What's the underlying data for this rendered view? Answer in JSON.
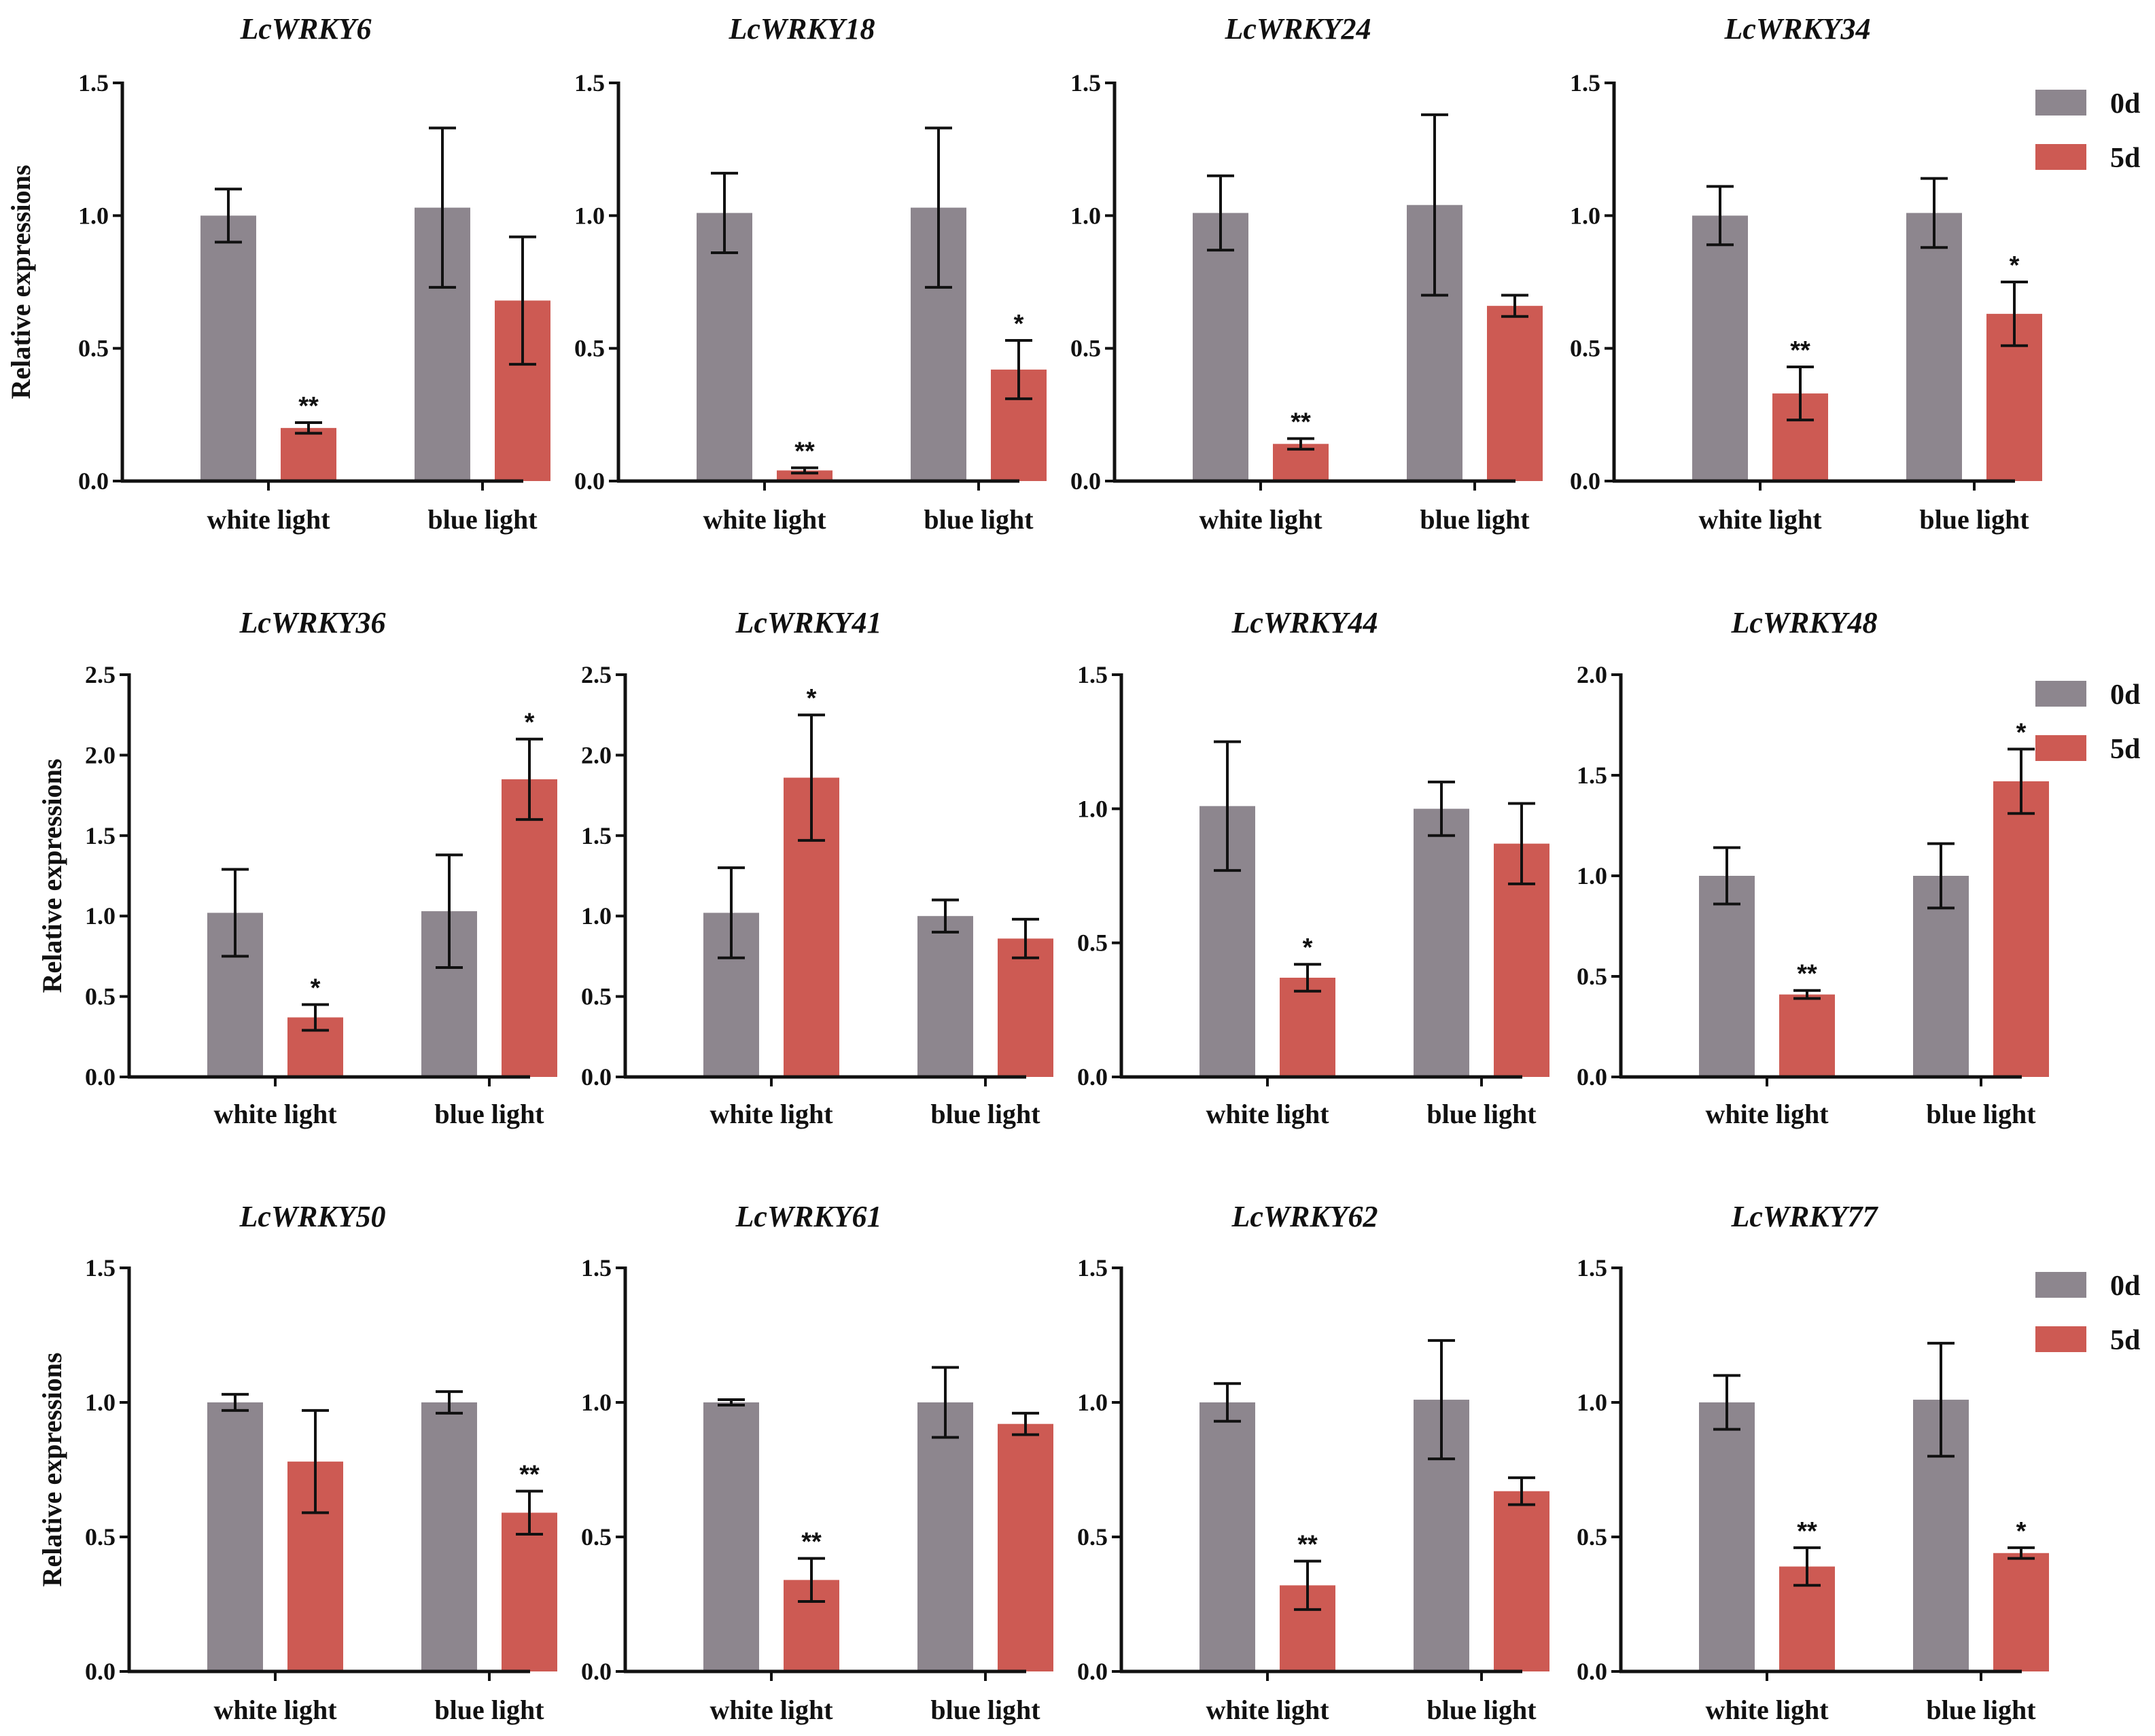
{
  "colors": {
    "day0": "#8d868e",
    "day5": "#cd5a53",
    "axis": "#111111"
  },
  "legend": {
    "labels": [
      "0d",
      "5d"
    ]
  },
  "chart_data": [
    {
      "type": "bar",
      "title": "LcWRKY6",
      "ylabel": "Relative expressions",
      "categories": [
        "white light",
        "blue light"
      ],
      "ylim": [
        0,
        1.5
      ],
      "yticks": [
        "0.0",
        "0.5",
        "1.0",
        "1.5"
      ],
      "series": [
        {
          "name": "0d",
          "values": [
            1.0,
            1.03
          ],
          "errors": [
            0.1,
            0.3
          ]
        },
        {
          "name": "5d",
          "values": [
            0.2,
            0.68
          ],
          "errors": [
            0.02,
            0.24
          ]
        }
      ],
      "significance": [
        "**",
        ""
      ]
    },
    {
      "type": "bar",
      "title": "LcWRKY18",
      "ylabel": "",
      "categories": [
        "white light",
        "blue light"
      ],
      "ylim": [
        0,
        1.5
      ],
      "yticks": [
        "0.0",
        "0.5",
        "1.0",
        "1.5"
      ],
      "series": [
        {
          "name": "0d",
          "values": [
            1.01,
            1.03
          ],
          "errors": [
            0.15,
            0.3
          ]
        },
        {
          "name": "5d",
          "values": [
            0.04,
            0.42
          ],
          "errors": [
            0.01,
            0.11
          ]
        }
      ],
      "significance": [
        "**",
        "*"
      ]
    },
    {
      "type": "bar",
      "title": "LcWRKY24",
      "ylabel": "",
      "categories": [
        "white light",
        "blue light"
      ],
      "ylim": [
        0,
        1.5
      ],
      "yticks": [
        "0.0",
        "0.5",
        "1.0",
        "1.5"
      ],
      "series": [
        {
          "name": "0d",
          "values": [
            1.01,
            1.04
          ],
          "errors": [
            0.14,
            0.34
          ]
        },
        {
          "name": "5d",
          "values": [
            0.14,
            0.66
          ],
          "errors": [
            0.02,
            0.04
          ]
        }
      ],
      "significance": [
        "**",
        ""
      ]
    },
    {
      "type": "bar",
      "title": "LcWRKY34",
      "ylabel": "",
      "categories": [
        "white light",
        "blue light"
      ],
      "ylim": [
        0,
        1.5
      ],
      "yticks": [
        "0.0",
        "0.5",
        "1.0",
        "1.5"
      ],
      "series": [
        {
          "name": "0d",
          "values": [
            1.0,
            1.01
          ],
          "errors": [
            0.11,
            0.13
          ]
        },
        {
          "name": "5d",
          "values": [
            0.33,
            0.63
          ],
          "errors": [
            0.1,
            0.12
          ]
        }
      ],
      "significance": [
        "**",
        "*"
      ]
    },
    {
      "type": "bar",
      "title": "LcWRKY36",
      "ylabel": "Relative expressions",
      "categories": [
        "white light",
        "blue light"
      ],
      "ylim": [
        0,
        2.5
      ],
      "yticks": [
        "0.0",
        "0.5",
        "1.0",
        "1.5",
        "2.0",
        "2.5"
      ],
      "series": [
        {
          "name": "0d",
          "values": [
            1.02,
            1.03
          ],
          "errors": [
            0.27,
            0.35
          ]
        },
        {
          "name": "5d",
          "values": [
            0.37,
            1.85
          ],
          "errors": [
            0.08,
            0.25
          ]
        }
      ],
      "significance": [
        "*",
        "*"
      ]
    },
    {
      "type": "bar",
      "title": "LcWRKY41",
      "ylabel": "",
      "categories": [
        "white light",
        "blue light"
      ],
      "ylim": [
        0,
        2.5
      ],
      "yticks": [
        "0.0",
        "0.5",
        "1.0",
        "1.5",
        "2.0",
        "2.5"
      ],
      "series": [
        {
          "name": "0d",
          "values": [
            1.02,
            1.0
          ],
          "errors": [
            0.28,
            0.1
          ]
        },
        {
          "name": "5d",
          "values": [
            1.86,
            0.86
          ],
          "errors": [
            0.39,
            0.12
          ]
        }
      ],
      "significance": [
        "*",
        ""
      ]
    },
    {
      "type": "bar",
      "title": "LcWRKY44",
      "ylabel": "",
      "categories": [
        "white light",
        "blue light"
      ],
      "ylim": [
        0,
        1.5
      ],
      "yticks": [
        "0.0",
        "0.5",
        "1.0",
        "1.5"
      ],
      "series": [
        {
          "name": "0d",
          "values": [
            1.01,
            1.0
          ],
          "errors": [
            0.24,
            0.1
          ]
        },
        {
          "name": "5d",
          "values": [
            0.37,
            0.87
          ],
          "errors": [
            0.05,
            0.15
          ]
        }
      ],
      "significance": [
        "*",
        ""
      ]
    },
    {
      "type": "bar",
      "title": "LcWRKY48",
      "ylabel": "",
      "categories": [
        "white light",
        "blue light"
      ],
      "ylim": [
        0,
        2.0
      ],
      "yticks": [
        "0.0",
        "0.5",
        "1.0",
        "1.5",
        "2.0"
      ],
      "series": [
        {
          "name": "0d",
          "values": [
            1.0,
            1.0
          ],
          "errors": [
            0.14,
            0.16
          ]
        },
        {
          "name": "5d",
          "values": [
            0.41,
            1.47
          ],
          "errors": [
            0.02,
            0.16
          ]
        }
      ],
      "significance": [
        "**",
        "*"
      ]
    },
    {
      "type": "bar",
      "title": "LcWRKY50",
      "ylabel": "Relative expressions",
      "categories": [
        "white light",
        "blue light"
      ],
      "ylim": [
        0,
        1.5
      ],
      "yticks": [
        "0.0",
        "0.5",
        "1.0",
        "1.5"
      ],
      "series": [
        {
          "name": "0d",
          "values": [
            1.0,
            1.0
          ],
          "errors": [
            0.03,
            0.04
          ]
        },
        {
          "name": "5d",
          "values": [
            0.78,
            0.59
          ],
          "errors": [
            0.19,
            0.08
          ]
        }
      ],
      "significance": [
        "",
        "**"
      ]
    },
    {
      "type": "bar",
      "title": "LcWRKY61",
      "ylabel": "",
      "categories": [
        "white light",
        "blue light"
      ],
      "ylim": [
        0,
        1.5
      ],
      "yticks": [
        "0.0",
        "0.5",
        "1.0",
        "1.5"
      ],
      "series": [
        {
          "name": "0d",
          "values": [
            1.0,
            1.0
          ],
          "errors": [
            0.01,
            0.13
          ]
        },
        {
          "name": "5d",
          "values": [
            0.34,
            0.92
          ],
          "errors": [
            0.08,
            0.04
          ]
        }
      ],
      "significance": [
        "**",
        ""
      ]
    },
    {
      "type": "bar",
      "title": "LcWRKY62",
      "ylabel": "",
      "categories": [
        "white light",
        "blue light"
      ],
      "ylim": [
        0,
        1.5
      ],
      "yticks": [
        "0.0",
        "0.5",
        "1.0",
        "1.5"
      ],
      "series": [
        {
          "name": "0d",
          "values": [
            1.0,
            1.01
          ],
          "errors": [
            0.07,
            0.22
          ]
        },
        {
          "name": "5d",
          "values": [
            0.32,
            0.67
          ],
          "errors": [
            0.09,
            0.05
          ]
        }
      ],
      "significance": [
        "**",
        ""
      ]
    },
    {
      "type": "bar",
      "title": "LcWRKY77",
      "ylabel": "",
      "categories": [
        "white light",
        "blue light"
      ],
      "ylim": [
        0,
        1.5
      ],
      "yticks": [
        "0.0",
        "0.5",
        "1.0",
        "1.5"
      ],
      "series": [
        {
          "name": "0d",
          "values": [
            1.0,
            1.01
          ],
          "errors": [
            0.1,
            0.21
          ]
        },
        {
          "name": "5d",
          "values": [
            0.39,
            0.44
          ],
          "errors": [
            0.07,
            0.02
          ]
        }
      ],
      "significance": [
        "**",
        "*"
      ]
    }
  ]
}
